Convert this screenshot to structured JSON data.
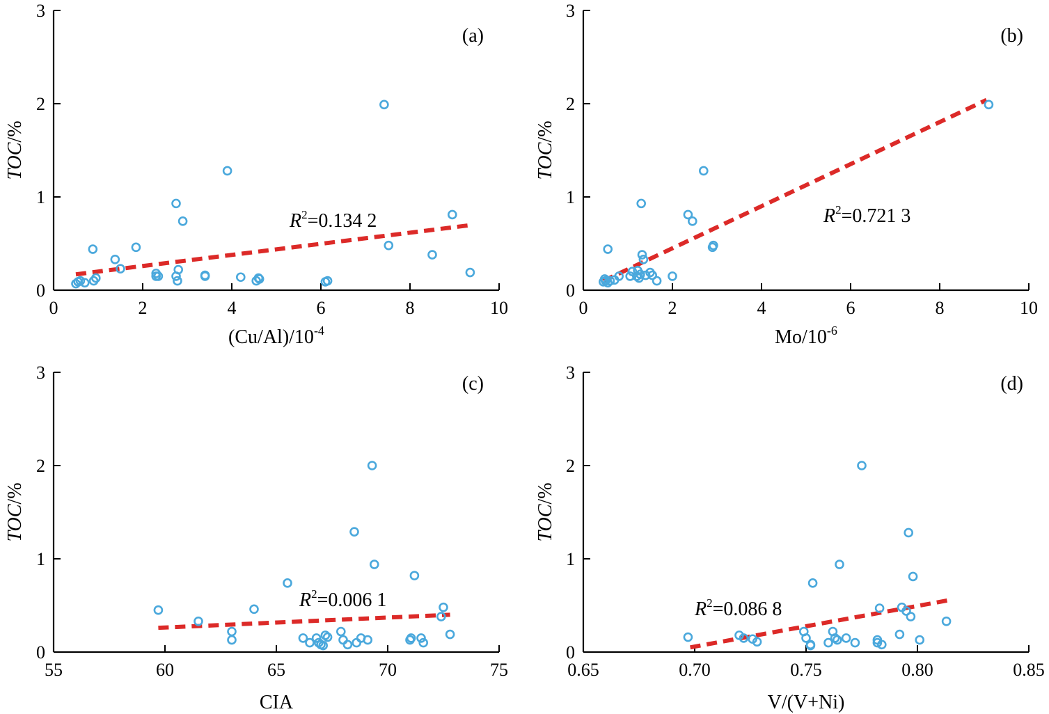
{
  "colors": {
    "points": "#4aa8dc",
    "fit": "#dc2a28",
    "axes": "#000000"
  },
  "chart_data": [
    {
      "type": "scatter",
      "panel": "(a)",
      "xlabel": "(Cu/Al)/10",
      "xlabel_sup": "-4",
      "ylabel": "TOC",
      "ylabel_unit": "/%",
      "xlim": [
        0,
        10
      ],
      "ylim": [
        0,
        3
      ],
      "xticks": [
        0,
        2,
        4,
        6,
        8,
        10
      ],
      "yticks": [
        0,
        1,
        2,
        3
      ],
      "r2_prefix": "R",
      "r2_sup": "2",
      "r2_value": "=0.134 2",
      "fit": {
        "x": [
          0.5,
          9.4
        ],
        "y": [
          0.17,
          0.7
        ]
      },
      "points": [
        [
          0.5,
          0.07
        ],
        [
          0.55,
          0.09
        ],
        [
          0.6,
          0.1
        ],
        [
          0.7,
          0.08
        ],
        [
          0.9,
          0.1
        ],
        [
          0.95,
          0.13
        ],
        [
          0.88,
          0.44
        ],
        [
          1.38,
          0.33
        ],
        [
          1.5,
          0.23
        ],
        [
          1.85,
          0.46
        ],
        [
          2.3,
          0.18
        ],
        [
          2.3,
          0.15
        ],
        [
          2.35,
          0.15
        ],
        [
          2.75,
          0.93
        ],
        [
          2.75,
          0.15
        ],
        [
          2.8,
          0.22
        ],
        [
          2.78,
          0.1
        ],
        [
          2.9,
          0.74
        ],
        [
          3.4,
          0.15
        ],
        [
          3.4,
          0.16
        ],
        [
          3.9,
          1.28
        ],
        [
          4.2,
          0.14
        ],
        [
          4.55,
          0.1
        ],
        [
          4.6,
          0.13
        ],
        [
          4.62,
          0.12
        ],
        [
          6.1,
          0.09
        ],
        [
          6.15,
          0.1
        ],
        [
          7.42,
          1.99
        ],
        [
          7.52,
          0.48
        ],
        [
          8.5,
          0.38
        ],
        [
          8.95,
          0.81
        ],
        [
          9.35,
          0.19
        ]
      ]
    },
    {
      "type": "scatter",
      "panel": "(b)",
      "xlabel": "Mo/10",
      "xlabel_sup": "-6",
      "ylabel": "TOC",
      "ylabel_unit": "/%",
      "xlim": [
        0,
        10
      ],
      "ylim": [
        0,
        3
      ],
      "xticks": [
        0,
        2,
        4,
        6,
        8,
        10
      ],
      "yticks": [
        0,
        1,
        2,
        3
      ],
      "r2_prefix": "R",
      "r2_sup": "2",
      "r2_value": "=0.721 3",
      "fit": {
        "x": [
          0.45,
          9.05
        ],
        "y": [
          0.1,
          2.04
        ]
      },
      "points": [
        [
          0.45,
          0.09
        ],
        [
          0.48,
          0.12
        ],
        [
          0.5,
          0.1
        ],
        [
          0.55,
          0.08
        ],
        [
          0.6,
          0.1
        ],
        [
          0.55,
          0.44
        ],
        [
          0.7,
          0.11
        ],
        [
          0.8,
          0.15
        ],
        [
          1.05,
          0.15
        ],
        [
          1.1,
          0.2
        ],
        [
          1.2,
          0.15
        ],
        [
          1.22,
          0.21
        ],
        [
          1.25,
          0.13
        ],
        [
          1.28,
          0.17
        ],
        [
          1.3,
          0.93
        ],
        [
          1.32,
          0.38
        ],
        [
          1.35,
          0.33
        ],
        [
          1.4,
          0.16
        ],
        [
          1.5,
          0.19
        ],
        [
          1.55,
          0.16
        ],
        [
          1.65,
          0.1
        ],
        [
          2.0,
          0.15
        ],
        [
          2.35,
          0.81
        ],
        [
          2.45,
          0.74
        ],
        [
          2.7,
          1.28
        ],
        [
          2.9,
          0.46
        ],
        [
          2.92,
          0.48
        ],
        [
          9.1,
          1.99
        ]
      ]
    },
    {
      "type": "scatter",
      "panel": "(c)",
      "xlabel": "CIA",
      "xlabel_sup": "",
      "ylabel": "TOC",
      "ylabel_unit": "/%",
      "xlim": [
        55,
        75
      ],
      "ylim": [
        0,
        3
      ],
      "xticks": [
        55,
        60,
        65,
        70,
        75
      ],
      "yticks": [
        0,
        1,
        2,
        3
      ],
      "r2_prefix": "R",
      "r2_sup": "2",
      "r2_value": "=0.006 1",
      "fit": {
        "x": [
          59.7,
          72.8
        ],
        "y": [
          0.26,
          0.4
        ]
      },
      "points": [
        [
          59.7,
          0.45
        ],
        [
          61.5,
          0.33
        ],
        [
          63.0,
          0.22
        ],
        [
          63.0,
          0.13
        ],
        [
          64.0,
          0.46
        ],
        [
          65.5,
          0.74
        ],
        [
          66.2,
          0.15
        ],
        [
          66.5,
          0.1
        ],
        [
          66.8,
          0.15
        ],
        [
          66.9,
          0.1
        ],
        [
          67.0,
          0.08
        ],
        [
          67.1,
          0.07
        ],
        [
          67.2,
          0.18
        ],
        [
          67.3,
          0.16
        ],
        [
          67.9,
          0.22
        ],
        [
          68.0,
          0.13
        ],
        [
          68.2,
          0.08
        ],
        [
          68.5,
          1.29
        ],
        [
          68.6,
          0.1
        ],
        [
          68.8,
          0.15
        ],
        [
          69.1,
          0.13
        ],
        [
          69.3,
          2.0
        ],
        [
          69.4,
          0.94
        ],
        [
          71.0,
          0.13
        ],
        [
          71.05,
          0.15
        ],
        [
          71.2,
          0.82
        ],
        [
          71.5,
          0.15
        ],
        [
          71.6,
          0.1
        ],
        [
          72.4,
          0.38
        ],
        [
          72.5,
          0.48
        ],
        [
          72.8,
          0.19
        ]
      ]
    },
    {
      "type": "scatter",
      "panel": "(d)",
      "xlabel": "V/(V+Ni)",
      "xlabel_sup": "",
      "ylabel": "TOC",
      "ylabel_unit": "/%",
      "xlim": [
        0.65,
        0.85
      ],
      "ylim": [
        0,
        3
      ],
      "xticks": [
        "0.65",
        "0.70",
        "0.75",
        "0.80",
        "0.85"
      ],
      "yticks": [
        0,
        1,
        2,
        3
      ],
      "r2_prefix": "R",
      "r2_sup": "2",
      "r2_value": "=0.086 8",
      "fit": {
        "x": [
          0.698,
          0.815
        ],
        "y": [
          0.05,
          0.56
        ]
      },
      "points": [
        [
          0.697,
          0.16
        ],
        [
          0.72,
          0.18
        ],
        [
          0.722,
          0.15
        ],
        [
          0.726,
          0.14
        ],
        [
          0.728,
          0.11
        ],
        [
          0.749,
          0.22
        ],
        [
          0.75,
          0.15
        ],
        [
          0.752,
          0.08
        ],
        [
          0.752,
          0.07
        ],
        [
          0.753,
          0.74
        ],
        [
          0.76,
          0.1
        ],
        [
          0.762,
          0.22
        ],
        [
          0.763,
          0.15
        ],
        [
          0.764,
          0.13
        ],
        [
          0.765,
          0.94
        ],
        [
          0.768,
          0.15
        ],
        [
          0.772,
          0.1
        ],
        [
          0.775,
          2.0
        ],
        [
          0.782,
          0.13
        ],
        [
          0.782,
          0.1
        ],
        [
          0.783,
          0.47
        ],
        [
          0.784,
          0.08
        ],
        [
          0.792,
          0.19
        ],
        [
          0.793,
          0.48
        ],
        [
          0.795,
          0.44
        ],
        [
          0.796,
          1.28
        ],
        [
          0.797,
          0.38
        ],
        [
          0.798,
          0.81
        ],
        [
          0.801,
          0.13
        ],
        [
          0.813,
          0.33
        ]
      ]
    }
  ]
}
